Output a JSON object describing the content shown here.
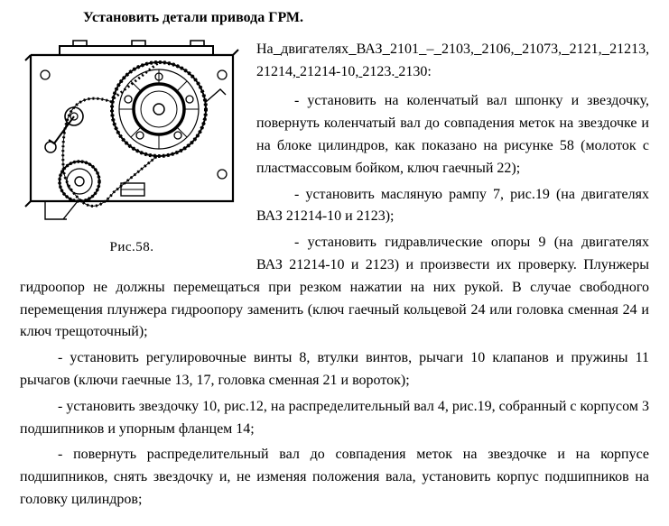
{
  "heading": "Установить детали привода ГРМ.",
  "figure_caption": "Рис.58.",
  "engine_list_words": [
    "На",
    "двигателях",
    "ВАЗ",
    "2101",
    "–",
    "2103,",
    "2106,",
    "21073,",
    "2121,",
    "21213,",
    "21214,",
    "21214-10,",
    "2123.",
    "2130:"
  ],
  "paragraphs": [
    "- установить на коленчатый вал шпонку и звездочку, повернуть коленчатый вал до совпадения меток на звездочке и на блоке цилиндров, как показано на рисунке 58 (молоток с пластмассовым бойком, ключ гаечный 22);",
    "- установить масляную рампу 7, рис.19 (на двигателях ВАЗ 21214-10 и 2123);",
    "- установить гидравлические опоры 9 (на двигателях ВАЗ 21214-10 и 2123) и произвести их проверку. Плунжеры гидроопор не должны перемещаться при резком нажатии на них рукой. В случае свободного перемещения плунжера гидроопору заменить (ключ гаечный кольцевой 24 или головка сменная 24 и ключ трещоточный);",
    "- установить регулировочные винты 8, втулки винтов, рычаги 10 клапанов и пружины 11 рычагов (ключи гаечные 13, 17, головка сменная 21 и вороток);",
    "- установить звездочку 10, рис.12, на распределительный вал 4, рис.19, собранный с корпусом 3 подшипников и упорным фланцем 14;",
    "- повернуть распределительный вал до совпадения меток на звездочке и на корпусе подшипников, снять звездочку и, не изменяя положения вала, установить корпус подшипников на головку цилиндров;"
  ],
  "colors": {
    "text": "#000000",
    "background": "#ffffff",
    "line": "#000000"
  }
}
